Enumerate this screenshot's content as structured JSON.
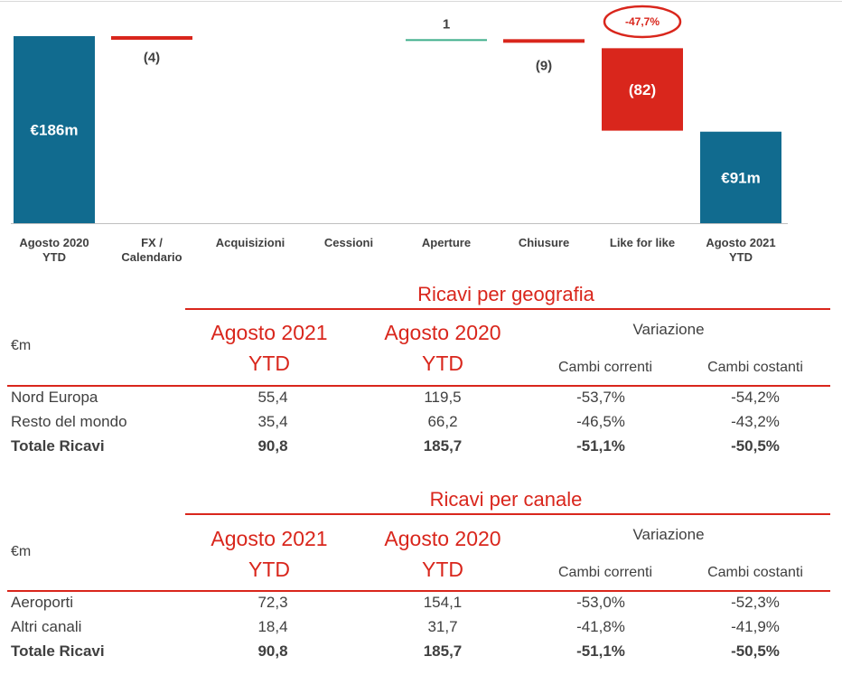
{
  "chart_data": {
    "type": "waterfall",
    "categories": [
      "Agosto 2020\nYTD",
      "FX /\nCalendario",
      "Acquisizioni",
      "Cessioni",
      "Aperture",
      "Chiusure",
      "Like for like",
      "Agosto 2021\nYTD"
    ],
    "values": [
      186,
      -4,
      0,
      0,
      1,
      -9,
      -82,
      91
    ],
    "data_labels": [
      "€186m",
      "(4)",
      "",
      "",
      "1",
      "(9)",
      "(82)",
      "€91m"
    ],
    "callout": "-47,7%",
    "colors": {
      "total": "#116b8f",
      "decrease": "#d9261c",
      "increase": "#3fae8c",
      "axis": "#bfbfbf"
    }
  },
  "tables": [
    {
      "title": "Ricavi per geografia",
      "unit": "€m",
      "col_2021": [
        "Agosto 2021",
        "YTD"
      ],
      "col_2020": [
        "Agosto 2020",
        "YTD"
      ],
      "variation_header": "Variazione",
      "sub_correnti": "Cambi correnti",
      "sub_costanti": "Cambi costanti",
      "rows": [
        {
          "name": "Nord Europa",
          "a2021": "55,4",
          "a2020": "119,5",
          "correnti": "-53,7%",
          "costanti": "-54,2%",
          "bold": false
        },
        {
          "name": "Resto del mondo",
          "a2021": "35,4",
          "a2020": "66,2",
          "correnti": "-46,5%",
          "costanti": "-43,2%",
          "bold": false
        },
        {
          "name": "Totale Ricavi",
          "a2021": "90,8",
          "a2020": "185,7",
          "correnti": "-51,1%",
          "costanti": "-50,5%",
          "bold": true
        }
      ]
    },
    {
      "title": "Ricavi per canale",
      "unit": "€m",
      "col_2021": [
        "Agosto 2021",
        "YTD"
      ],
      "col_2020": [
        "Agosto 2020",
        "YTD"
      ],
      "variation_header": "Variazione",
      "sub_correnti": "Cambi correnti",
      "sub_costanti": "Cambi costanti",
      "rows": [
        {
          "name": "Aeroporti",
          "a2021": "72,3",
          "a2020": "154,1",
          "correnti": "-53,0%",
          "costanti": "-52,3%",
          "bold": false
        },
        {
          "name": "Altri canali",
          "a2021": "18,4",
          "a2020": "31,7",
          "correnti": "-41,8%",
          "costanti": "-41,9%",
          "bold": false
        },
        {
          "name": "Totale Ricavi",
          "a2021": "90,8",
          "a2020": "185,7",
          "correnti": "-51,1%",
          "costanti": "-50,5%",
          "bold": true
        }
      ]
    }
  ]
}
